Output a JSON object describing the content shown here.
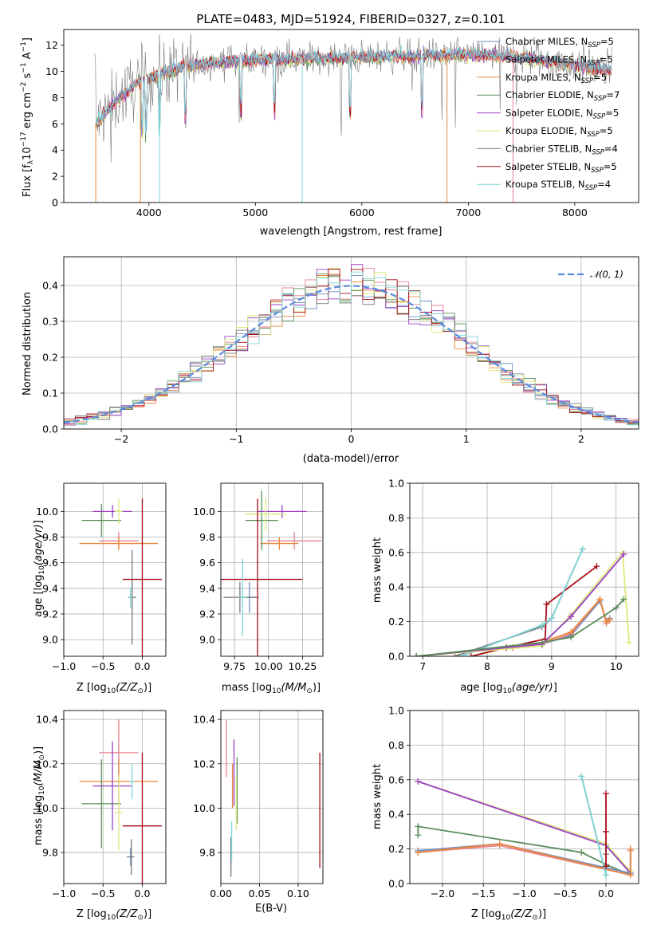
{
  "colors": {
    "chab_miles": "#6f8fc5",
    "salp_miles": "#e8828f",
    "krou_miles": "#e8883a",
    "chab_elodie": "#5b8c5a",
    "salp_elodie": "#9a3fc4",
    "krou_elodie": "#dce87a",
    "chab_stelib": "#7a7a7a",
    "salp_stelib": "#a80c18",
    "krou_stelib": "#7fd6d8",
    "normal": "#5b8be0"
  },
  "legend": [
    {
      "key": "chab_miles",
      "label": "Chabrier MILES, N",
      "sub": "SSP",
      "suffix": "=5"
    },
    {
      "key": "salp_miles",
      "label": "Salpeter MILES, N",
      "sub": "SSP",
      "suffix": "=5"
    },
    {
      "key": "krou_miles",
      "label": "Kroupa MILES, N",
      "sub": "SSP",
      "suffix": "=5"
    },
    {
      "key": "chab_elodie",
      "label": "Chabrier ELODIE, N",
      "sub": "SSP",
      "suffix": "=7"
    },
    {
      "key": "salp_elodie",
      "label": "Salpeter ELODIE, N",
      "sub": "SSP",
      "suffix": "=5"
    },
    {
      "key": "krou_elodie",
      "label": "Kroupa ELODIE, N",
      "sub": "SSP",
      "suffix": "=5"
    },
    {
      "key": "chab_stelib",
      "label": "Chabrier STELIB, N",
      "sub": "SSP",
      "suffix": "=4"
    },
    {
      "key": "salp_stelib",
      "label": "Salpeter STELIB, N",
      "sub": "SSP",
      "suffix": "=5"
    },
    {
      "key": "krou_stelib",
      "label": "Kroupa STELIB, N",
      "sub": "SSP",
      "suffix": "=4"
    }
  ],
  "chart_data": [
    {
      "id": "spectrum",
      "type": "line",
      "title": "PLATE=0483, MJD=51924, FIBERID=0327, z=0.101",
      "xlabel": "wavelength [Angstrom, rest frame]",
      "ylabel": "Flux [f",
      "xlim": [
        3200,
        8600
      ],
      "ylim": [
        0,
        13.2
      ],
      "xticks": [
        4000,
        5000,
        6000,
        7000,
        8000
      ],
      "yticks": [
        0,
        2,
        4,
        6,
        8,
        10,
        12
      ],
      "continuum_x": [
        3500,
        3700,
        3900,
        4100,
        4300,
        4600,
        5000,
        5500,
        6000,
        6500,
        7000,
        7500,
        8000,
        8350
      ],
      "continuum_y": [
        6.0,
        7.8,
        9.2,
        9.8,
        10.3,
        10.7,
        10.9,
        11.0,
        11.1,
        11.2,
        11.3,
        11.1,
        10.5,
        10.1
      ],
      "grid": false
    },
    {
      "id": "residuals",
      "type": "bar",
      "xlabel": "(data-model)/error",
      "ylabel": "Normed distribution",
      "xlim": [
        -2.5,
        2.5
      ],
      "ylim": [
        0,
        0.48
      ],
      "xticks": [
        -2,
        -1,
        0,
        1,
        2
      ],
      "yticks": [
        0,
        0.1,
        0.2,
        0.3,
        0.4
      ],
      "bin_width": 0.1,
      "normal_label": "𝒩(0, 1)",
      "grid": true
    },
    {
      "id": "age_vs_Z",
      "type": "scatter",
      "xlabel": "Z [log",
      "ylabel": "age  [log",
      "xlim": [
        -1.0,
        0.3
      ],
      "ylim": [
        8.87,
        10.22
      ],
      "xticks": [
        -1.0,
        -0.5,
        0.0
      ],
      "yticks": [
        9.0,
        9.2,
        9.4,
        9.6,
        9.8,
        10.0
      ],
      "points": [
        {
          "s": "chab_miles",
          "x": -0.13,
          "y": 9.33,
          "ex": 0.05,
          "ey": 0.12
        },
        {
          "s": "salp_miles",
          "x": -0.3,
          "y": 9.77,
          "ex": 0.25,
          "ey": 0.07
        },
        {
          "s": "krou_miles",
          "x": -0.3,
          "y": 9.75,
          "ex": 0.5,
          "ey": 0.05
        },
        {
          "s": "chab_elodie",
          "x": -0.52,
          "y": 9.93,
          "ex": 0.25,
          "ey": 0.13
        },
        {
          "s": "salp_elodie",
          "x": -0.38,
          "y": 10.0,
          "ex": 0.25,
          "ey": 0.05
        },
        {
          "s": "krou_elodie",
          "x": -0.3,
          "y": 10.0,
          "ex": 0.05,
          "ey": 0.1
        },
        {
          "s": "chab_stelib",
          "x": -0.13,
          "y": 9.33,
          "ex": 0.05,
          "ey": 0.37
        },
        {
          "s": "salp_stelib",
          "x": 0.0,
          "y": 9.47,
          "ex": 0.25,
          "ey": 0.63
        },
        {
          "s": "krou_stelib",
          "x": -0.15,
          "y": 9.33,
          "ex": 0.03,
          "ey": 0.08
        }
      ]
    },
    {
      "id": "age_vs_mass",
      "type": "scatter",
      "xlabel": "mass [log",
      "ylabel": "",
      "xlim": [
        9.65,
        10.4
      ],
      "ylim": [
        8.87,
        10.22
      ],
      "xticks": [
        9.75,
        10.0,
        10.25
      ],
      "yticks": [
        9.0,
        9.2,
        9.4,
        9.6,
        9.8,
        10.0
      ],
      "points": [
        {
          "s": "chab_miles",
          "x": 9.86,
          "y": 9.33,
          "ex": 0.07,
          "ey": 0.12
        },
        {
          "s": "salp_miles",
          "x": 10.19,
          "y": 9.77,
          "ex": 0.2,
          "ey": 0.07
        },
        {
          "s": "krou_miles",
          "x": 10.08,
          "y": 9.75,
          "ex": 0.14,
          "ey": 0.05
        },
        {
          "s": "chab_elodie",
          "x": 9.95,
          "y": 9.93,
          "ex": 0.12,
          "ey": 0.23
        },
        {
          "s": "salp_elodie",
          "x": 10.1,
          "y": 10.0,
          "ex": 0.18,
          "ey": 0.05
        },
        {
          "s": "krou_elodie",
          "x": 9.98,
          "y": 9.98,
          "ex": 0.15,
          "ey": 0.13
        },
        {
          "s": "chab_stelib",
          "x": 9.79,
          "y": 9.33,
          "ex": 0.12,
          "ey": 0.12
        },
        {
          "s": "salp_stelib",
          "x": 9.92,
          "y": 9.47,
          "ex": 0.33,
          "ey": 0.63
        },
        {
          "s": "krou_stelib",
          "x": 9.81,
          "y": 9.33,
          "ex": 0.03,
          "ey": 0.3
        }
      ]
    },
    {
      "id": "weights_vs_age",
      "type": "line",
      "xlabel": "age  [log",
      "ylabel": "mass weight",
      "xlim": [
        6.8,
        10.35
      ],
      "ylim": [
        0,
        1.0
      ],
      "xticks": [
        7,
        8,
        9,
        10
      ],
      "yticks": [
        0.0,
        0.2,
        0.4,
        0.6,
        0.8,
        1.0
      ],
      "grid": true,
      "series": [
        {
          "s": "salp_stelib",
          "x": [
            7.75,
            8.3,
            8.9,
            8.92,
            9.7
          ],
          "y": [
            0.0,
            0.05,
            0.1,
            0.3,
            0.52
          ]
        },
        {
          "s": "chab_stelib",
          "x": [
            7.5,
            8.85,
            9.0,
            9.48
          ],
          "y": [
            0.0,
            0.17,
            0.22,
            0.62
          ]
        },
        {
          "s": "krou_stelib",
          "x": [
            7.6,
            8.85,
            9.0,
            9.48
          ],
          "y": [
            0.0,
            0.18,
            0.22,
            0.62
          ]
        },
        {
          "s": "chab_miles",
          "x": [
            8.4,
            8.85,
            9.3,
            9.75,
            9.85,
            9.9
          ],
          "y": [
            0.05,
            0.07,
            0.12,
            0.32,
            0.2,
            0.22
          ]
        },
        {
          "s": "salp_miles",
          "x": [
            8.4,
            8.85,
            9.3,
            9.75,
            9.85,
            9.9
          ],
          "y": [
            0.05,
            0.07,
            0.13,
            0.33,
            0.19,
            0.21
          ]
        },
        {
          "s": "krou_miles",
          "x": [
            8.4,
            8.85,
            9.3,
            9.75,
            9.85,
            9.9
          ],
          "y": [
            0.05,
            0.08,
            0.14,
            0.33,
            0.2,
            0.21
          ]
        },
        {
          "s": "krou_elodie",
          "x": [
            6.9,
            8.85,
            9.3,
            10.1,
            10.2
          ],
          "y": [
            0.0,
            0.06,
            0.24,
            0.6,
            0.08
          ]
        },
        {
          "s": "salp_elodie",
          "x": [
            6.9,
            8.85,
            9.3,
            10.12
          ],
          "y": [
            0.0,
            0.07,
            0.23,
            0.59
          ]
        },
        {
          "s": "chab_elodie",
          "x": [
            6.9,
            8.85,
            9.3,
            10.0,
            10.12
          ],
          "y": [
            0.0,
            0.08,
            0.11,
            0.28,
            0.33
          ]
        }
      ]
    },
    {
      "id": "mass_vs_Z",
      "type": "scatter",
      "xlabel": "Z [log",
      "ylabel": "mass [log",
      "xlim": [
        -1.0,
        0.3
      ],
      "ylim": [
        9.66,
        10.44
      ],
      "xticks": [
        -1.0,
        -0.5,
        0.0
      ],
      "yticks": [
        9.8,
        10.0,
        10.2,
        10.4
      ],
      "points": [
        {
          "s": "chab_miles",
          "x": -0.15,
          "y": 9.78,
          "ex": 0.05,
          "ey": 0.04
        },
        {
          "s": "salp_miles",
          "x": -0.3,
          "y": 10.25,
          "ex": 0.25,
          "ey": 0.15
        },
        {
          "s": "krou_miles",
          "x": -0.3,
          "y": 10.12,
          "ex": 0.5,
          "ey": 0.1
        },
        {
          "s": "chab_elodie",
          "x": -0.52,
          "y": 10.02,
          "ex": 0.25,
          "ey": 0.2
        },
        {
          "s": "salp_elodie",
          "x": -0.38,
          "y": 10.1,
          "ex": 0.25,
          "ey": 0.2
        },
        {
          "s": "krou_elodie",
          "x": -0.3,
          "y": 9.98,
          "ex": 0.05,
          "ey": 0.17
        },
        {
          "s": "chab_stelib",
          "x": -0.14,
          "y": 9.78,
          "ex": 0.03,
          "ey": 0.08
        },
        {
          "s": "salp_stelib",
          "x": 0.0,
          "y": 9.92,
          "ex": 0.25,
          "ey": 0.33
        },
        {
          "s": "krou_stelib",
          "x": -0.13,
          "y": 10.12,
          "ex": 0.03,
          "ey": 0.08
        }
      ]
    },
    {
      "id": "mass_vs_ebv",
      "type": "scatter",
      "xlabel": "E(B-V)",
      "ylabel": "",
      "xlim": [
        0.0,
        0.132
      ],
      "ylim": [
        9.66,
        10.44
      ],
      "xticks": [
        0.0,
        0.05,
        0.1
      ],
      "yticks": [
        9.8,
        10.0,
        10.2,
        10.4
      ],
      "points": [
        {
          "s": "chab_miles",
          "x": 0.013,
          "y": 9.78,
          "ex": 0,
          "ey": 0.06
        },
        {
          "s": "salp_miles",
          "x": 0.007,
          "y": 10.27,
          "ex": 0,
          "ey": 0.13
        },
        {
          "s": "krou_miles",
          "x": 0.015,
          "y": 10.1,
          "ex": 0,
          "ey": 0.1
        },
        {
          "s": "chab_elodie",
          "x": 0.021,
          "y": 10.08,
          "ex": 0,
          "ey": 0.15
        },
        {
          "s": "salp_elodie",
          "x": 0.017,
          "y": 10.16,
          "ex": 0,
          "ey": 0.15
        },
        {
          "s": "krou_elodie",
          "x": 0.02,
          "y": 10.02,
          "ex": 0,
          "ey": 0.12
        },
        {
          "s": "chab_stelib",
          "x": 0.013,
          "y": 9.78,
          "ex": 0,
          "ey": 0.09
        },
        {
          "s": "salp_stelib",
          "x": 0.128,
          "y": 9.99,
          "ex": 0,
          "ey": 0.26
        },
        {
          "s": "krou_stelib",
          "x": 0.014,
          "y": 9.85,
          "ex": 0,
          "ey": 0.09
        }
      ]
    },
    {
      "id": "weights_vs_Z",
      "type": "line",
      "xlabel": "Z [log",
      "ylabel": "mass weight",
      "xlim": [
        -2.4,
        0.4
      ],
      "ylim": [
        0,
        1.0
      ],
      "xticks": [
        -2.0,
        -1.5,
        -1.0,
        -0.5,
        0.0
      ],
      "yticks": [
        0.0,
        0.2,
        0.4,
        0.6,
        0.8,
        1.0
      ],
      "grid": true,
      "series": [
        {
          "s": "krou_elodie",
          "x": [
            -2.3,
            0.0,
            0.3
          ],
          "y": [
            0.59,
            0.23,
            0.07
          ]
        },
        {
          "s": "salp_elodie",
          "x": [
            -2.3,
            0.0,
            0.3
          ],
          "y": [
            0.59,
            0.22,
            0.06
          ]
        },
        {
          "s": "chab_elodie",
          "x": [
            -2.3,
            -2.3,
            -0.3,
            0.0,
            0.3
          ],
          "y": [
            0.28,
            0.33,
            0.18,
            0.11,
            0.05
          ]
        },
        {
          "s": "chab_miles",
          "x": [
            -2.3,
            -1.3,
            0.3,
            0.3
          ],
          "y": [
            0.19,
            0.23,
            0.06,
            0.2
          ]
        },
        {
          "s": "salp_miles",
          "x": [
            -2.3,
            -1.3,
            0.3,
            0.3
          ],
          "y": [
            0.18,
            0.22,
            0.05,
            0.19
          ]
        },
        {
          "s": "krou_miles",
          "x": [
            -2.3,
            -1.3,
            0.3,
            0.3
          ],
          "y": [
            0.18,
            0.23,
            0.05,
            0.2
          ]
        },
        {
          "s": "chab_stelib",
          "x": [
            -0.3,
            0.0,
            0.0
          ],
          "y": [
            0.62,
            0.05,
            0.17
          ]
        },
        {
          "s": "krou_stelib",
          "x": [
            -0.3,
            0.0,
            0.0
          ],
          "y": [
            0.62,
            0.05,
            0.22
          ]
        },
        {
          "s": "salp_stelib",
          "x": [
            0.0,
            0.0,
            0.0
          ],
          "y": [
            0.52,
            0.3,
            0.1
          ]
        }
      ]
    }
  ]
}
